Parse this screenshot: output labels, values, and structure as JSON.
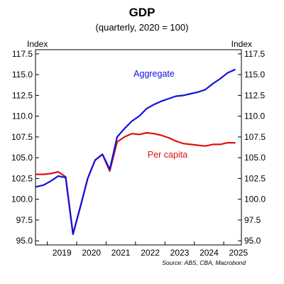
{
  "chart_data": {
    "type": "line",
    "title": "GDP",
    "subtitle": "(quarterly, 2020 = 100)",
    "ylabel_left": "Index",
    "ylabel_right": "Index",
    "source": "Source: ABS, CBA, Macrobond",
    "ylim": [
      94.5,
      118.0
    ],
    "yticks": [
      "95.0",
      "97.5",
      "100.0",
      "102.5",
      "105.0",
      "107.5",
      "110.0",
      "112.5",
      "115.0",
      "117.5"
    ],
    "xlim": [
      2018.6,
      2025.6
    ],
    "xticks": [
      "2019",
      "2020",
      "2021",
      "2022",
      "2023",
      "2024",
      "2025"
    ],
    "grid": false,
    "colors": {
      "aggregate": "#1010e0",
      "per_capita": "#e01010"
    },
    "series": [
      {
        "name": "Aggregate",
        "color": "#1010e0",
        "x": [
          2018.625,
          2018.875,
          2019.125,
          2019.375,
          2019.625,
          2019.875,
          2020.125,
          2020.375,
          2020.625,
          2020.875,
          2021.125,
          2021.375,
          2021.625,
          2021.875,
          2022.125,
          2022.375,
          2022.625,
          2022.875,
          2023.125,
          2023.375,
          2023.625,
          2023.875,
          2024.125,
          2024.375,
          2024.625,
          2024.875,
          2025.125,
          2025.375
        ],
        "values": [
          101.5,
          101.7,
          102.2,
          102.8,
          102.6,
          95.8,
          99.1,
          102.5,
          104.7,
          105.4,
          103.6,
          107.5,
          108.5,
          109.4,
          110.0,
          110.9,
          111.4,
          111.8,
          112.1,
          112.4,
          112.5,
          112.7,
          112.9,
          113.2,
          113.9,
          114.5,
          115.2,
          115.6
        ]
      },
      {
        "name": "Per capita",
        "color": "#e01010",
        "x": [
          2018.625,
          2018.875,
          2019.125,
          2019.375,
          2019.625,
          2019.875,
          2020.125,
          2020.375,
          2020.625,
          2020.875,
          2021.125,
          2021.375,
          2021.625,
          2021.875,
          2022.125,
          2022.375,
          2022.625,
          2022.875,
          2023.125,
          2023.375,
          2023.625,
          2023.875,
          2024.125,
          2024.375,
          2024.625,
          2024.875,
          2025.125,
          2025.375
        ],
        "values": [
          103.0,
          103.0,
          103.1,
          103.3,
          102.7,
          95.8,
          99.1,
          102.5,
          104.7,
          105.4,
          103.4,
          106.9,
          107.5,
          107.9,
          107.8,
          108.0,
          107.9,
          107.7,
          107.4,
          107.0,
          106.7,
          106.6,
          106.5,
          106.4,
          106.6,
          106.6,
          106.8,
          106.8
        ]
      }
    ]
  }
}
